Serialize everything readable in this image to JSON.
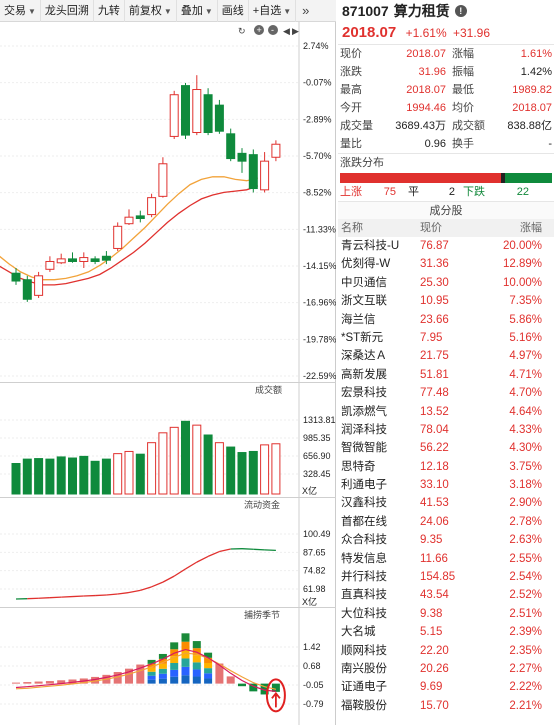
{
  "toolbar": {
    "items": [
      "交易",
      "龙头回溯",
      "九转",
      "前复权",
      "叠加",
      "画线",
      "自选"
    ],
    "more": "»"
  },
  "kline": {
    "y_labels": [
      "2.74%",
      "-0.07%",
      "-2.89%",
      "-5.70%",
      "-8.52%",
      "-11.33%",
      "-14.15%",
      "-16.96%",
      "-19.78%",
      "-22.59%"
    ],
    "candles": [
      {
        "o": -14.7,
        "c": -15.3,
        "h": -14.3,
        "l": -15.6
      },
      {
        "o": -15.2,
        "c": -16.7,
        "h": -14.9,
        "l": -16.9
      },
      {
        "o": -16.4,
        "c": -14.9,
        "h": -14.6,
        "l": -16.6
      },
      {
        "o": -14.4,
        "c": -13.8,
        "h": -13.4,
        "l": -14.6
      },
      {
        "o": -13.9,
        "c": -13.6,
        "h": -13.2,
        "l": -14.0
      },
      {
        "o": -13.6,
        "c": -13.8,
        "h": -13.1,
        "l": -13.9
      },
      {
        "o": -13.8,
        "c": -13.5,
        "h": -13.1,
        "l": -14.3
      },
      {
        "o": -13.6,
        "c": -13.8,
        "h": -13.4,
        "l": -14.0
      },
      {
        "o": -13.4,
        "c": -13.7,
        "h": -13.0,
        "l": -14.0
      },
      {
        "o": -12.8,
        "c": -11.1,
        "h": -10.8,
        "l": -13.0
      },
      {
        "o": -10.9,
        "c": -10.4,
        "h": -9.8,
        "l": -11.0
      },
      {
        "o": -10.3,
        "c": -10.5,
        "h": -9.9,
        "l": -10.8
      },
      {
        "o": -10.2,
        "c": -8.9,
        "h": -8.6,
        "l": -10.4
      },
      {
        "o": -8.8,
        "c": -6.3,
        "h": -5.8,
        "l": -8.9
      },
      {
        "o": -4.2,
        "c": -1.0,
        "h": -0.7,
        "l": -4.4
      },
      {
        "o": -0.3,
        "c": -4.1,
        "h": -0.1,
        "l": -4.4
      },
      {
        "o": -3.9,
        "c": -0.6,
        "h": 0.5,
        "l": -4.1
      },
      {
        "o": -1.0,
        "c": -3.9,
        "h": -0.5,
        "l": -4.1
      },
      {
        "o": -1.8,
        "c": -3.8,
        "h": -1.4,
        "l": -4.0
      },
      {
        "o": -4.0,
        "c": -5.9,
        "h": -3.6,
        "l": -6.1
      },
      {
        "o": -5.5,
        "c": -6.1,
        "h": -5.1,
        "l": -7.0
      },
      {
        "o": -5.6,
        "c": -8.2,
        "h": -5.2,
        "l": -8.5
      },
      {
        "o": -8.3,
        "c": -6.1,
        "h": -5.4,
        "l": -8.5
      },
      {
        "o": -5.8,
        "c": -4.8,
        "h": -4.5,
        "l": -6.1
      }
    ],
    "ma_orange": [
      -13.3,
      -14.0,
      -14.6,
      -15.0,
      -15.2,
      -15.2,
      -15.1,
      -14.9,
      -14.6,
      -14.1,
      -13.5,
      -12.8,
      -12.0,
      -11.2,
      -10.3,
      -9.4,
      -8.6,
      -7.9,
      -7.5,
      -7.3,
      -7.3,
      -7.5,
      -7.6,
      -7.4
    ],
    "ma_red": [
      -14.1,
      -14.6,
      -15.1,
      -15.4,
      -15.6,
      -15.6,
      -15.5,
      -15.3,
      -15.1,
      -14.8,
      -14.3,
      -13.7,
      -13.1,
      -12.4,
      -11.6,
      -10.8,
      -10.1,
      -9.5,
      -9.0,
      -8.7,
      -8.5,
      -8.4,
      -8.3,
      -8.0
    ]
  },
  "volume": {
    "title": "成交额",
    "y_labels": [
      "1313.81",
      "985.35",
      "656.90",
      "328.45"
    ],
    "unit": "X亿",
    "bars": [
      {
        "v": 520,
        "up": false
      },
      {
        "v": 600,
        "up": false
      },
      {
        "v": 610,
        "up": false
      },
      {
        "v": 600,
        "up": false
      },
      {
        "v": 640,
        "up": false
      },
      {
        "v": 620,
        "up": false
      },
      {
        "v": 650,
        "up": false
      },
      {
        "v": 560,
        "up": false
      },
      {
        "v": 600,
        "up": false
      },
      {
        "v": 700,
        "up": true
      },
      {
        "v": 740,
        "up": true
      },
      {
        "v": 690,
        "up": false
      },
      {
        "v": 900,
        "up": true
      },
      {
        "v": 1080,
        "up": true
      },
      {
        "v": 1180,
        "up": true
      },
      {
        "v": 1290,
        "up": false
      },
      {
        "v": 1220,
        "up": true
      },
      {
        "v": 1040,
        "up": false
      },
      {
        "v": 900,
        "up": true
      },
      {
        "v": 820,
        "up": false
      },
      {
        "v": 720,
        "up": false
      },
      {
        "v": 740,
        "up": false
      },
      {
        "v": 860,
        "up": true
      },
      {
        "v": 880,
        "up": true
      }
    ]
  },
  "capital": {
    "title": "流动资金",
    "y_labels": [
      "100.49",
      "87.65",
      "74.82",
      "61.98"
    ],
    "unit": "X亿",
    "points": [
      55.0,
      55.2,
      55.5,
      55.9,
      56.3,
      56.7,
      57.1,
      57.4,
      57.8,
      58.5,
      59.5,
      61.0,
      63.5,
      66.8,
      71.0,
      76.0,
      80.8,
      84.8,
      88.2,
      90.0,
      90.2,
      89.8,
      89.4,
      89.0
    ]
  },
  "season": {
    "title": "捕捞季节",
    "y_labels": [
      "1.42",
      "0.68",
      "-0.05",
      "-0.79"
    ],
    "bars": [
      0.04,
      0.06,
      0.08,
      0.1,
      0.13,
      0.16,
      0.2,
      0.26,
      0.34,
      0.45,
      0.58,
      0.74,
      0.92,
      1.15,
      1.6,
      1.95,
      1.65,
      1.2,
      0.78,
      0.28,
      -0.1,
      -0.3,
      -0.42,
      -0.32
    ],
    "line": [
      -0.15,
      -0.12,
      -0.08,
      -0.04,
      0.0,
      0.05,
      0.1,
      0.16,
      0.24,
      0.34,
      0.46,
      0.6,
      0.76,
      0.95,
      1.18,
      1.32,
      1.22,
      1.0,
      0.72,
      0.4,
      0.12,
      -0.1,
      -0.25,
      -0.3
    ],
    "line2": [
      -0.2,
      -0.18,
      -0.14,
      -0.1,
      -0.06,
      -0.01,
      0.04,
      0.1,
      0.17,
      0.26,
      0.37,
      0.5,
      0.65,
      0.82,
      1.02,
      1.18,
      1.14,
      0.98,
      0.76,
      0.5,
      0.26,
      0.04,
      -0.12,
      -0.22
    ]
  },
  "quote": {
    "code": "871007",
    "name": "算力租赁",
    "price": "2018.07",
    "change_pct": "+1.61%",
    "change": "+31.96",
    "rows": [
      {
        "l1": "现价",
        "v1": "2018.07",
        "c1": "red",
        "l2": "涨幅",
        "v2": "1.61%",
        "c2": "red"
      },
      {
        "l1": "涨跌",
        "v1": "31.96",
        "c1": "red",
        "l2": "振幅",
        "v2": "1.42%",
        "c2": ""
      },
      {
        "l1": "最高",
        "v1": "2018.07",
        "c1": "red",
        "l2": "最低",
        "v2": "1989.82",
        "c2": "red"
      },
      {
        "l1": "今开",
        "v1": "1994.46",
        "c1": "red",
        "l2": "均价",
        "v2": "2018.07",
        "c2": "red"
      },
      {
        "l1": "成交量",
        "v1": "3689.43万",
        "c1": "",
        "l2": "成交额",
        "v2": "838.88亿",
        "c2": ""
      },
      {
        "l1": "量比",
        "v1": "0.96",
        "c1": "",
        "l2": "换手",
        "v2": "-",
        "c2": ""
      }
    ],
    "dist_title": "涨跌分布",
    "up_label": "上涨",
    "up_count": "75",
    "flat_label": "平",
    "flat_count": "2",
    "down_label": "下跌",
    "down_count": "22",
    "dist_up": 75,
    "dist_flat": 2,
    "dist_down": 22
  },
  "components": {
    "title": "成分股",
    "headers": [
      "名称",
      "现价",
      "涨幅"
    ],
    "rows": [
      [
        "青云科技-U",
        "76.87",
        "20.00%"
      ],
      [
        "优刻得-W",
        "31.36",
        "12.89%"
      ],
      [
        "中贝通信",
        "25.30",
        "10.00%"
      ],
      [
        "浙文互联",
        "10.95",
        "7.35%"
      ],
      [
        "海兰信",
        "23.66",
        "5.86%"
      ],
      [
        "*ST新元",
        "7.95",
        "5.16%"
      ],
      [
        "深桑达Ａ",
        "21.75",
        "4.97%"
      ],
      [
        "高新发展",
        "51.81",
        "4.71%"
      ],
      [
        "宏景科技",
        "77.48",
        "4.70%"
      ],
      [
        "凯添燃气",
        "13.52",
        "4.64%"
      ],
      [
        "润泽科技",
        "78.04",
        "4.33%"
      ],
      [
        "智微智能",
        "56.22",
        "4.30%"
      ],
      [
        "思特奇",
        "12.18",
        "3.75%"
      ],
      [
        "利通电子",
        "33.10",
        "3.18%"
      ],
      [
        "汉鑫科技",
        "41.53",
        "2.90%"
      ],
      [
        "首都在线",
        "24.06",
        "2.78%"
      ],
      [
        "众合科技",
        "9.35",
        "2.63%"
      ],
      [
        "特发信息",
        "11.66",
        "2.55%"
      ],
      [
        "并行科技",
        "154.85",
        "2.54%"
      ],
      [
        "直真科技",
        "43.54",
        "2.52%"
      ],
      [
        "大位科技",
        "9.38",
        "2.51%"
      ],
      [
        "大名城",
        "5.15",
        "2.39%"
      ],
      [
        "顺网科技",
        "22.20",
        "2.35%"
      ],
      [
        "南兴股份",
        "20.26",
        "2.27%"
      ],
      [
        "证通电子",
        "9.69",
        "2.22%"
      ],
      [
        "福鞍股份",
        "15.70",
        "2.21%"
      ]
    ]
  },
  "colors": {
    "up": "#e0312e",
    "down": "#0f8a3c",
    "ma_orange": "#f2a33a",
    "ma_red": "#e0312e",
    "capital": "#e0312e",
    "capital_flat": "#0f8a3c"
  }
}
